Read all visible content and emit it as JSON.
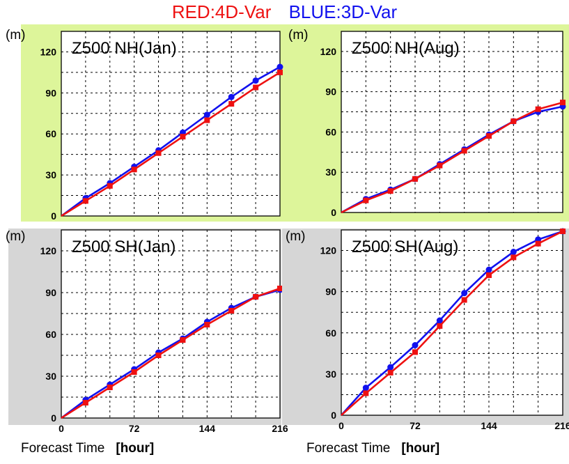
{
  "legend": {
    "red_label": "RED:4D-Var",
    "blue_label": "BLUE:3D-Var"
  },
  "colors": {
    "red": "#ee1111",
    "blue": "#1111ee",
    "nh_background": "#ddf59a",
    "sh_background": "#d6d6d6",
    "grid": "#000000"
  },
  "xlabel": "Forecast Time",
  "xunit": "[hour]",
  "chart_data": [
    {
      "type": "line",
      "title": "Z500 NH(Jan)",
      "ylabel": "(m)",
      "x": [
        0,
        24,
        48,
        72,
        96,
        120,
        144,
        168,
        192,
        216
      ],
      "ylim": [
        0,
        135
      ],
      "xlim": [
        0,
        216
      ],
      "yticks": [
        0,
        30,
        60,
        90,
        120
      ],
      "xticks": [],
      "grid": true,
      "series": [
        {
          "name": "BLUE:3D-Var",
          "color": "blue",
          "values": [
            0,
            13,
            24,
            36,
            48,
            61,
            74,
            87,
            99,
            109
          ]
        },
        {
          "name": "RED:4D-Var",
          "color": "red",
          "values": [
            0,
            11,
            22,
            34,
            46,
            58,
            70,
            82,
            94,
            105
          ]
        }
      ]
    },
    {
      "type": "line",
      "title": "Z500 NH(Aug)",
      "ylabel": "(m)",
      "x": [
        0,
        24,
        48,
        72,
        96,
        120,
        144,
        168,
        192,
        216
      ],
      "ylim": [
        0,
        135
      ],
      "xlim": [
        0,
        216
      ],
      "yticks": [
        0,
        30,
        60,
        90,
        120
      ],
      "xticks": [],
      "grid": true,
      "series": [
        {
          "name": "BLUE:3D-Var",
          "color": "blue",
          "values": [
            0,
            10,
            17,
            25,
            36,
            47,
            58,
            68,
            75,
            79
          ]
        },
        {
          "name": "RED:4D-Var",
          "color": "red",
          "values": [
            0,
            9,
            16,
            25,
            35,
            46,
            57,
            68,
            77,
            82
          ]
        }
      ]
    },
    {
      "type": "line",
      "title": "Z500 SH(Jan)",
      "ylabel": "(m)",
      "x": [
        0,
        24,
        48,
        72,
        96,
        120,
        144,
        168,
        192,
        216
      ],
      "ylim": [
        0,
        135
      ],
      "xlim": [
        0,
        216
      ],
      "yticks": [
        0,
        30,
        60,
        90,
        120
      ],
      "xticks": [
        0,
        72,
        144,
        216
      ],
      "grid": true,
      "series": [
        {
          "name": "BLUE:3D-Var",
          "color": "blue",
          "values": [
            0,
            13,
            24,
            35,
            47,
            57,
            69,
            79,
            87,
            92
          ]
        },
        {
          "name": "RED:4D-Var",
          "color": "red",
          "values": [
            0,
            11,
            22,
            33,
            45,
            56,
            67,
            77,
            87,
            93
          ]
        }
      ]
    },
    {
      "type": "line",
      "title": "Z500 SH(Aug)",
      "ylabel": "(m)",
      "x": [
        0,
        24,
        48,
        72,
        96,
        120,
        144,
        168,
        192,
        216
      ],
      "ylim": [
        0,
        135
      ],
      "xlim": [
        0,
        216
      ],
      "yticks": [
        0,
        30,
        60,
        90,
        120
      ],
      "xticks": [
        0,
        72,
        144,
        216
      ],
      "grid": true,
      "series": [
        {
          "name": "BLUE:3D-Var",
          "color": "blue",
          "values": [
            0,
            20,
            35,
            51,
            69,
            89,
            106,
            119,
            128,
            134
          ]
        },
        {
          "name": "RED:4D-Var",
          "color": "red",
          "values": [
            0,
            16,
            31,
            46,
            65,
            84,
            102,
            115,
            125,
            134
          ]
        }
      ]
    }
  ]
}
